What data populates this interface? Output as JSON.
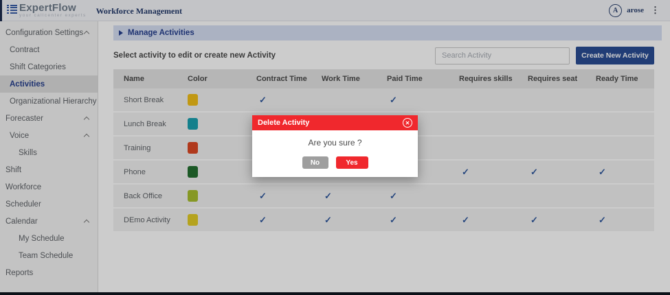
{
  "header": {
    "brand": "ExpertFlow",
    "tagline": "your callcenter experts",
    "app_title": "Workforce Management",
    "user_initial": "A",
    "user_name": "arose",
    "kebab": "⋮"
  },
  "sidebar": {
    "items": [
      {
        "label": "Configuration Settings",
        "level": 0,
        "chevron": true,
        "active": false
      },
      {
        "label": "Contract",
        "level": 1,
        "chevron": false,
        "active": false
      },
      {
        "label": "Shift Categories",
        "level": 1,
        "chevron": false,
        "active": false
      },
      {
        "label": "Activities",
        "level": 1,
        "chevron": false,
        "active": true
      },
      {
        "label": "Organizational Hierarchy",
        "level": 1,
        "chevron": false,
        "active": false
      },
      {
        "label": "Forecaster",
        "level": 0,
        "chevron": true,
        "active": false
      },
      {
        "label": "Voice",
        "level": 1,
        "chevron": true,
        "active": false
      },
      {
        "label": "Skills",
        "level": 2,
        "chevron": false,
        "active": false
      },
      {
        "label": "Shift",
        "level": 0,
        "chevron": false,
        "active": false
      },
      {
        "label": "Workforce",
        "level": 0,
        "chevron": false,
        "active": false
      },
      {
        "label": "Scheduler",
        "level": 0,
        "chevron": false,
        "active": false
      },
      {
        "label": "Calendar",
        "level": 0,
        "chevron": true,
        "active": false
      },
      {
        "label": "My Schedule",
        "level": 2,
        "chevron": false,
        "active": false
      },
      {
        "label": "Team Schedule",
        "level": 2,
        "chevron": false,
        "active": false
      },
      {
        "label": "Reports",
        "level": 0,
        "chevron": false,
        "active": false
      }
    ]
  },
  "main": {
    "section_title": "Manage Activities",
    "subtitle": "Select activity to edit or create new Activity",
    "search_placeholder": "Search Activity",
    "create_button": "Create New Activity",
    "table": {
      "columns": [
        "Name",
        "Color",
        "Contract Time",
        "Work Time",
        "Paid Time",
        "Requires skills",
        "Requires seat",
        "Ready Time"
      ],
      "check_glyph": "✓",
      "rows": [
        {
          "name": "Short Break",
          "color": "#f2bf18",
          "checks": [
            true,
            false,
            true,
            false,
            false,
            false
          ]
        },
        {
          "name": "Lunch Break",
          "color": "#1aa0b0",
          "checks": [
            false,
            false,
            false,
            false,
            false,
            false
          ]
        },
        {
          "name": "Training",
          "color": "#dd4823",
          "checks": [
            false,
            false,
            false,
            false,
            false,
            false
          ]
        },
        {
          "name": "Phone",
          "color": "#247030",
          "checks": [
            false,
            false,
            false,
            true,
            true,
            true
          ]
        },
        {
          "name": "Back Office",
          "color": "#a8bf2e",
          "checks": [
            true,
            true,
            true,
            false,
            false,
            false
          ]
        },
        {
          "name": "DEmo Activity",
          "color": "#e3cc26",
          "checks": [
            true,
            true,
            true,
            true,
            true,
            true
          ]
        }
      ]
    }
  },
  "modal": {
    "title": "Delete Activity",
    "close_glyph": "✕",
    "message": "Are you sure ?",
    "no_label": "No",
    "yes_label": "Yes"
  },
  "colors": {
    "primary_blue": "#2a4d94",
    "navy_text": "#27408f",
    "manage_bar_bg": "#d6dff3",
    "check_color": "#31599e",
    "modal_red": "#f0282d",
    "gray_btn": "#9e9e9e",
    "logo_blue": "#3b5fa9",
    "backdrop": "rgba(0,0,0,0.2)"
  }
}
